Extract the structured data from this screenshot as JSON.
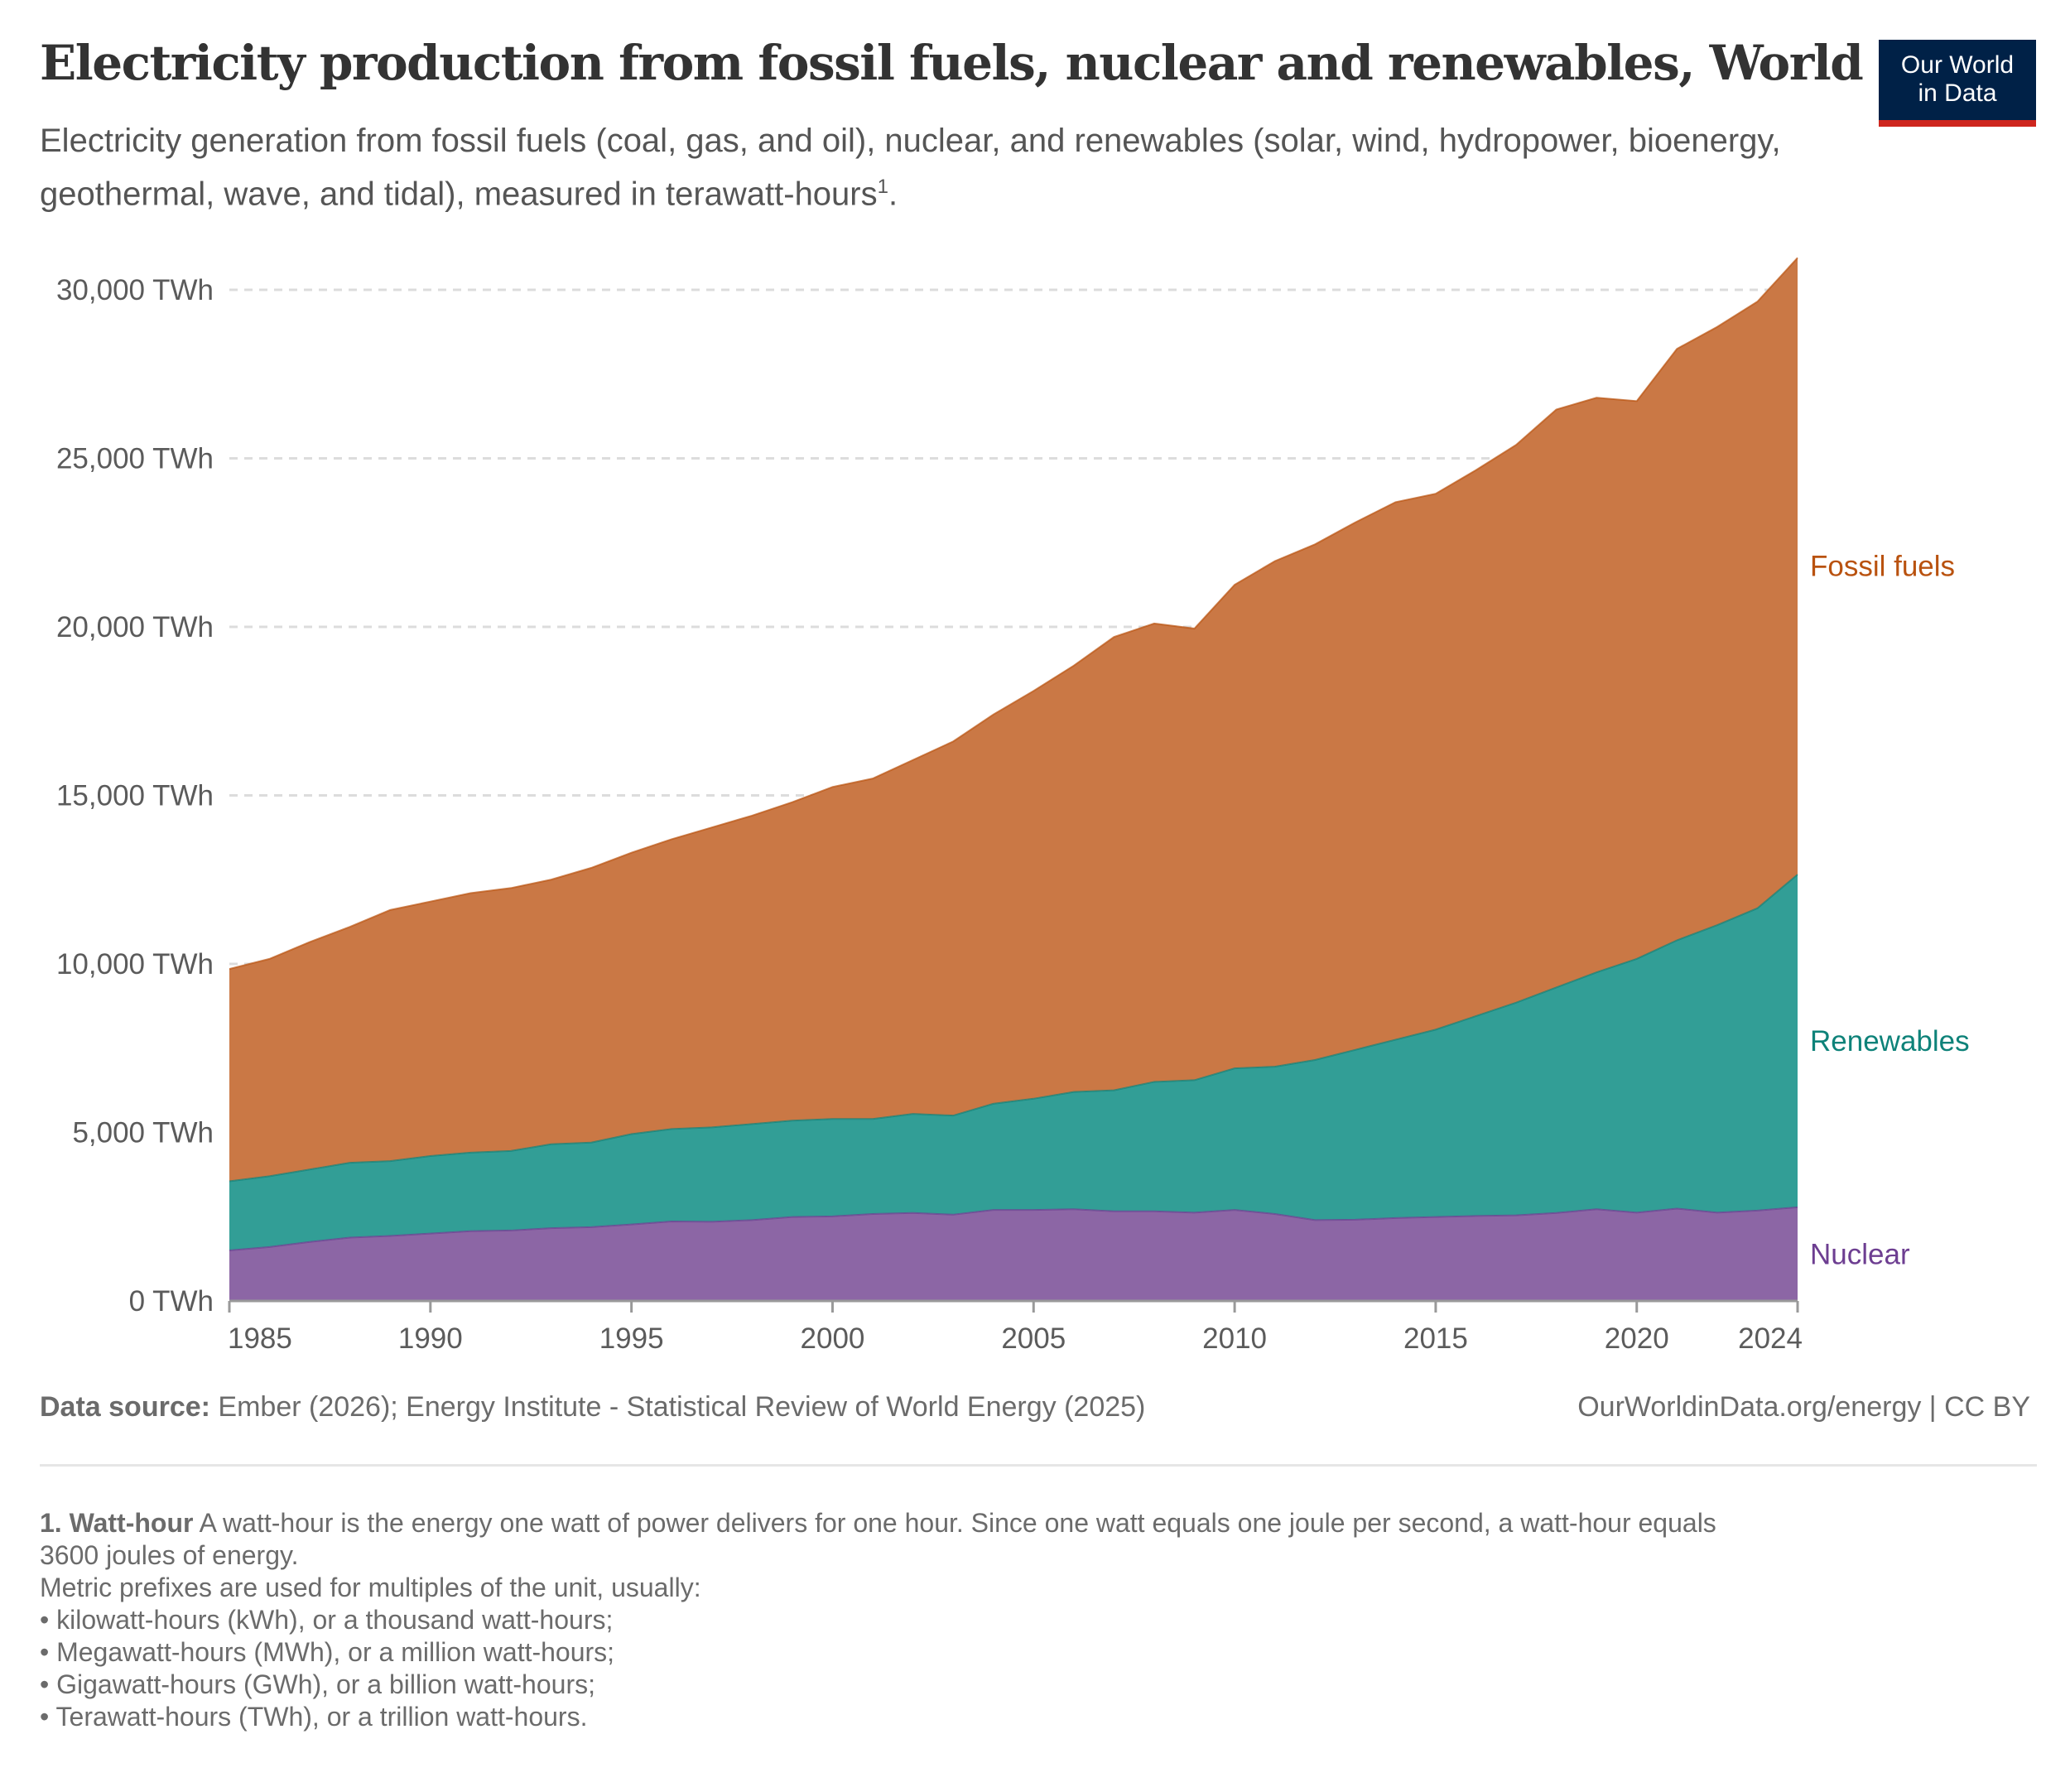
{
  "header": {
    "title": "Electricity production from fossil fuels, nuclear and renewables, World",
    "subtitle": "Electricity generation from fossil fuels (coal, gas, and oil), nuclear, and renewables (solar, wind, hydropower, bioenergy, geothermal, wave, and tidal), measured in terawatt-hours",
    "subtitle_footnote_ref": "1",
    "subtitle_end": ".",
    "logo_line1": "Our World",
    "logo_line2": "in Data"
  },
  "colors": {
    "logo_bg": "#002147",
    "logo_bar": "#ce261e",
    "fossil_fill": "#ca7845",
    "fossil_label": "#b9520f",
    "renewables_fill": "#329e96",
    "renewables_label": "#0e8279",
    "nuclear_fill": "#8c66a5",
    "nuclear_label": "#6d3e91"
  },
  "chart_data": {
    "type": "area",
    "stacked": true,
    "title": "Electricity production from fossil fuels, nuclear and renewables, World",
    "xlabel": "",
    "ylabel": "",
    "ylim": [
      0,
      30000
    ],
    "y_ticks": [
      0,
      5000,
      10000,
      15000,
      20000,
      25000,
      30000
    ],
    "y_tick_labels": [
      "0 TWh",
      "5,000 TWh",
      "10,000 TWh",
      "15,000 TWh",
      "20,000 TWh",
      "25,000 TWh",
      "30,000 TWh"
    ],
    "x_ticks": [
      1985,
      1990,
      1995,
      2000,
      2005,
      2010,
      2015,
      2020,
      2024
    ],
    "x_tick_labels": [
      "1985",
      "1990",
      "1995",
      "2000",
      "2005",
      "2010",
      "2015",
      "2020",
      "2024"
    ],
    "grid": "horizontal dashed",
    "legend": "right (inline labels)",
    "x": [
      1985,
      1986,
      1987,
      1988,
      1989,
      1990,
      1991,
      1992,
      1993,
      1994,
      1995,
      1996,
      1997,
      1998,
      1999,
      2000,
      2001,
      2002,
      2003,
      2004,
      2005,
      2006,
      2007,
      2008,
      2009,
      2010,
      2011,
      2012,
      2013,
      2014,
      2015,
      2016,
      2017,
      2018,
      2019,
      2020,
      2021,
      2022,
      2023,
      2024
    ],
    "series": [
      {
        "name": "Nuclear",
        "values": [
          1500,
          1600,
          1750,
          1880,
          1930,
          2000,
          2070,
          2090,
          2160,
          2190,
          2270,
          2360,
          2350,
          2400,
          2490,
          2510,
          2580,
          2610,
          2560,
          2700,
          2700,
          2720,
          2660,
          2660,
          2620,
          2700,
          2580,
          2400,
          2410,
          2460,
          2490,
          2520,
          2540,
          2610,
          2720,
          2620,
          2740,
          2620,
          2680,
          2780
        ]
      },
      {
        "name": "Renewables",
        "values": [
          2050,
          2100,
          2150,
          2220,
          2220,
          2300,
          2330,
          2360,
          2490,
          2510,
          2680,
          2740,
          2800,
          2850,
          2860,
          2890,
          2820,
          2940,
          2940,
          3150,
          3300,
          3480,
          3590,
          3840,
          3930,
          4200,
          4370,
          4750,
          5040,
          5290,
          5560,
          5930,
          6310,
          6690,
          7030,
          7530,
          7960,
          8530,
          8970,
          9870
        ]
      },
      {
        "name": "Fossil fuels",
        "values": [
          6300,
          6450,
          6750,
          7000,
          7450,
          7550,
          7700,
          7800,
          7850,
          8150,
          8350,
          8600,
          8900,
          9150,
          9450,
          9850,
          10100,
          10500,
          11100,
          11550,
          12100,
          12650,
          13450,
          13600,
          13400,
          14350,
          15000,
          15300,
          15650,
          15950,
          15900,
          16200,
          16550,
          17150,
          17050,
          16550,
          17550,
          17750,
          18000,
          18300
        ]
      }
    ]
  },
  "footer": {
    "source_label": "Data source:",
    "source_text": " Ember (2026); Energy Institute - Statistical Review of World Energy (2025)",
    "license": "OurWorldinData.org/energy | CC BY",
    "note_number": "1.",
    "note_term": "Watt-hour",
    "note_lines": [
      "A watt-hour is the energy one watt of power delivers for one hour. Since one watt equals one joule per second, a watt-hour equals",
      "3600 joules of energy.",
      "Metric prefixes are used for multiples of the unit, usually:",
      "• kilowatt-hours (kWh), or a thousand watt-hours;",
      "• Megawatt-hours (MWh), or a million watt-hours;",
      "• Gigawatt-hours (GWh), or a billion watt-hours;",
      "• Terawatt-hours (TWh), or a trillion watt-hours."
    ]
  }
}
